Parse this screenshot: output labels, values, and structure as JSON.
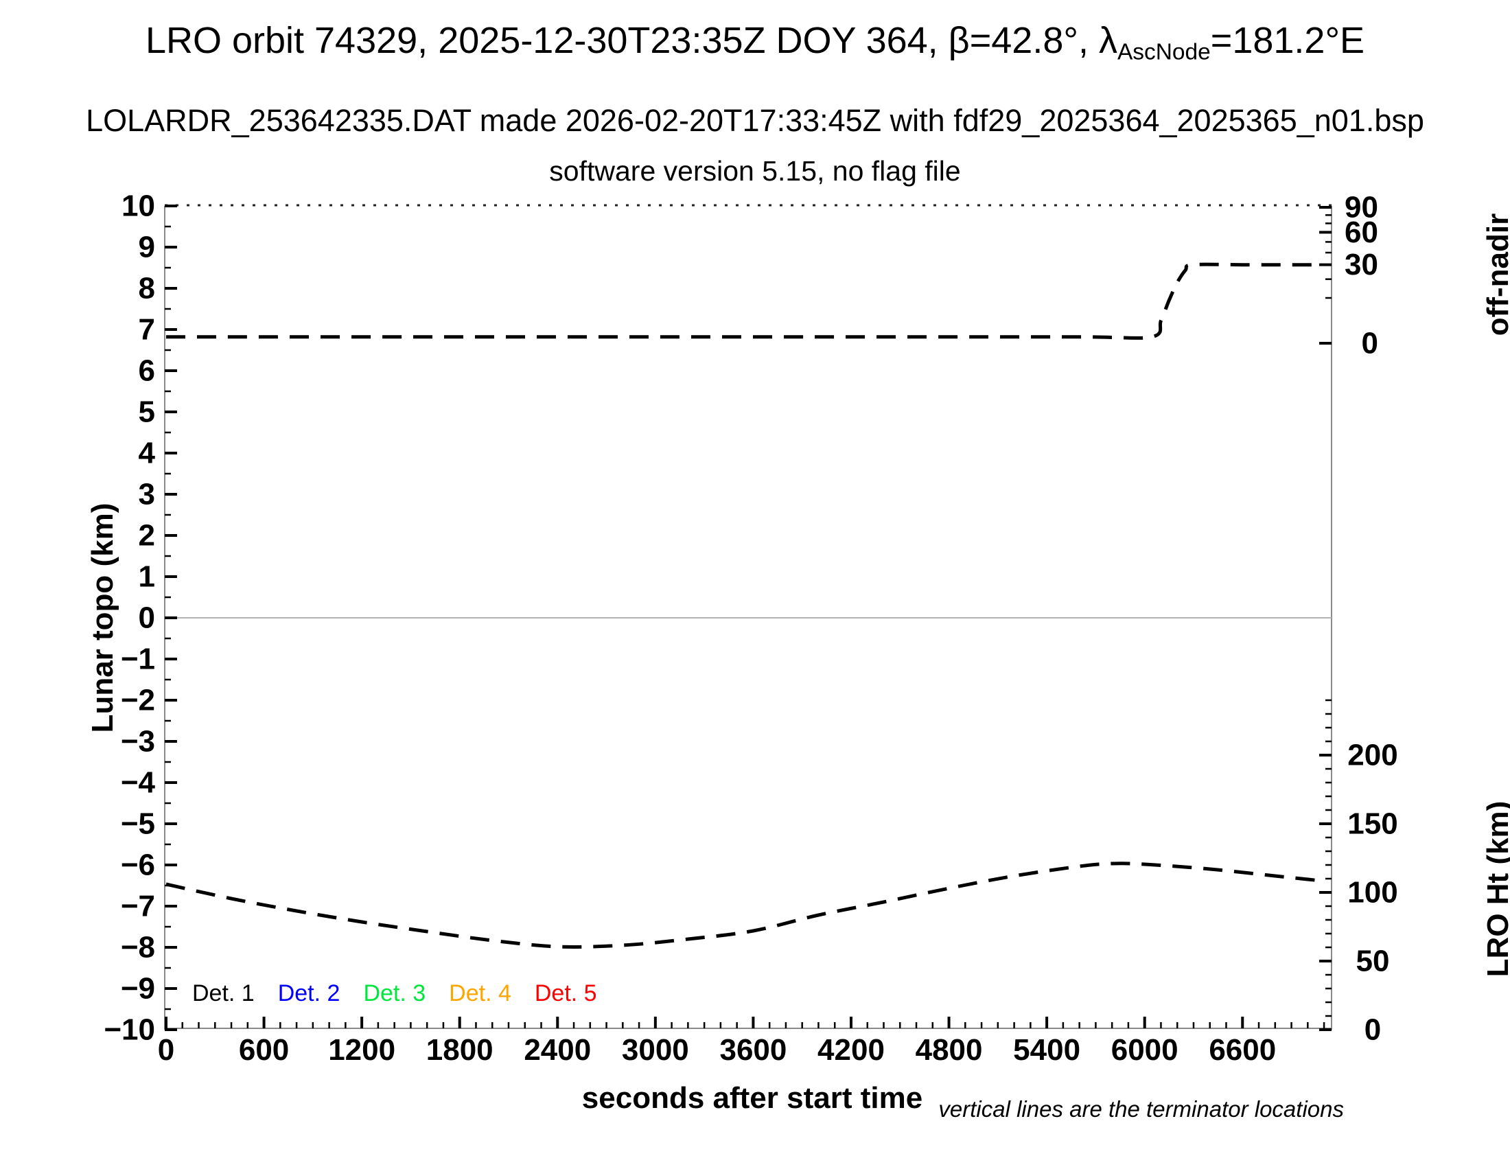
{
  "titles": {
    "line1_pre": "LRO orbit 74329, 2025-12-30T23:35Z DOY 364, β=42.8°, λ",
    "line1_sub": "AscNode",
    "line1_post": "=181.2°E",
    "line2": "LOLARDR_253642335.DAT made 2026-02-20T17:33:45Z with fdf29_2025364_2025365_n01.bsp",
    "line3": "software version 5.15, no flag file"
  },
  "axis_labels": {
    "x": "seconds after start time",
    "left": "Lunar topo (km)",
    "right_top": "off-nadir",
    "right_bottom": "LRO Ht (km)"
  },
  "legend": {
    "items": [
      {
        "label": "Det. 1",
        "color": "#000000"
      },
      {
        "label": "Det. 2",
        "color": "#0000ff"
      },
      {
        "label": "Det. 3",
        "color": "#00e63c"
      },
      {
        "label": "Det. 4",
        "color": "#ffa500"
      },
      {
        "label": "Det. 5",
        "color": "#ff0000"
      }
    ]
  },
  "footnote": "vertical lines are the terminator locations",
  "chart_data": {
    "type": "line",
    "title": "LRO orbit 74329, 2025-12-30T23:35Z DOY 364, β=42.8°, λAscNode=181.2°E",
    "xlabel": "seconds after start time",
    "x_range": [
      0,
      7146
    ],
    "x_major_ticks": [
      0,
      600,
      1200,
      1800,
      2400,
      3000,
      3600,
      4200,
      4800,
      5400,
      6000,
      6600
    ],
    "x_minor_tick_step": 100,
    "left_axis": {
      "label": "Lunar topo (km)",
      "range": [
        -10,
        10
      ],
      "major_tick_step": 1,
      "minor_tick_step": 0.5,
      "zero_line": true
    },
    "right_top_axis": {
      "label": "off-nadir",
      "unit": "degrees",
      "scale": "sqrt",
      "major_ticks": [
        0,
        30,
        60,
        90
      ],
      "minor_ticks": [
        10,
        20,
        40,
        50,
        70,
        80
      ]
    },
    "right_bottom_axis": {
      "label": "LRO Ht (km)",
      "range": [
        0,
        250
      ],
      "major_ticks": [
        0,
        50,
        100,
        150,
        200
      ],
      "minor_tick_step": 10
    },
    "terminator_lines": [],
    "line_style": {
      "dash": true,
      "color": "#000000"
    },
    "series": [
      {
        "name": "off-nadir angle",
        "axis": "right_top",
        "line_style": "dashed",
        "color": "#000000",
        "points": [
          [
            0,
            0.2
          ],
          [
            1500,
            0.2
          ],
          [
            3000,
            0.2
          ],
          [
            4500,
            0.2
          ],
          [
            5600,
            0.2
          ],
          [
            6044,
            0.2
          ],
          [
            6100,
            2.5
          ],
          [
            6150,
            9
          ],
          [
            6200,
            18
          ],
          [
            6250,
            26
          ],
          [
            6292,
            30
          ],
          [
            6600,
            30
          ],
          [
            6900,
            30
          ],
          [
            7080,
            30
          ]
        ]
      },
      {
        "name": "LRO height",
        "axis": "right_bottom",
        "line_style": "dashed",
        "color": "#000000",
        "points": [
          [
            0,
            106
          ],
          [
            400,
            95.5
          ],
          [
            800,
            86.5
          ],
          [
            1200,
            78.5
          ],
          [
            1600,
            71.5
          ],
          [
            2000,
            65
          ],
          [
            2400,
            60.5
          ],
          [
            2800,
            61.5
          ],
          [
            3200,
            66
          ],
          [
            3600,
            72
          ],
          [
            4000,
            83.5
          ],
          [
            4400,
            93
          ],
          [
            4800,
            103
          ],
          [
            5200,
            112
          ],
          [
            5600,
            119
          ],
          [
            5800,
            121
          ],
          [
            6000,
            120.5
          ],
          [
            6400,
            117
          ],
          [
            6800,
            112
          ],
          [
            7080,
            108.5
          ]
        ]
      }
    ]
  }
}
